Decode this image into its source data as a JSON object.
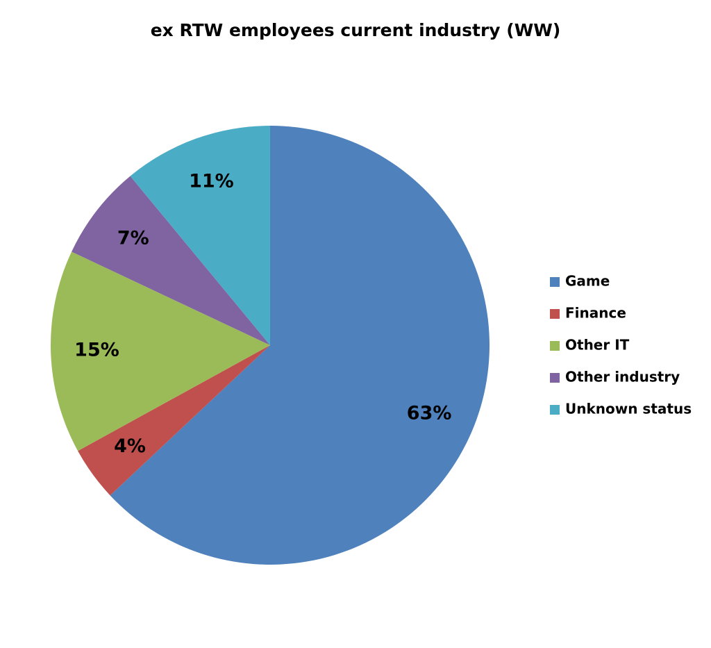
{
  "chart_data": {
    "type": "pie",
    "title": "ex RTW employees current industry (WW)",
    "categories": [
      "Game",
      "Finance",
      "Other IT",
      "Other industry",
      "Unknown status"
    ],
    "values": [
      63,
      4,
      15,
      7,
      11
    ],
    "value_labels": [
      "63%",
      "4%",
      "15%",
      "7%",
      "11%"
    ],
    "colors": [
      "#4f81bd",
      "#c0504d",
      "#9bbb59",
      "#8064a2",
      "#4bacc6"
    ],
    "legend": "right"
  }
}
